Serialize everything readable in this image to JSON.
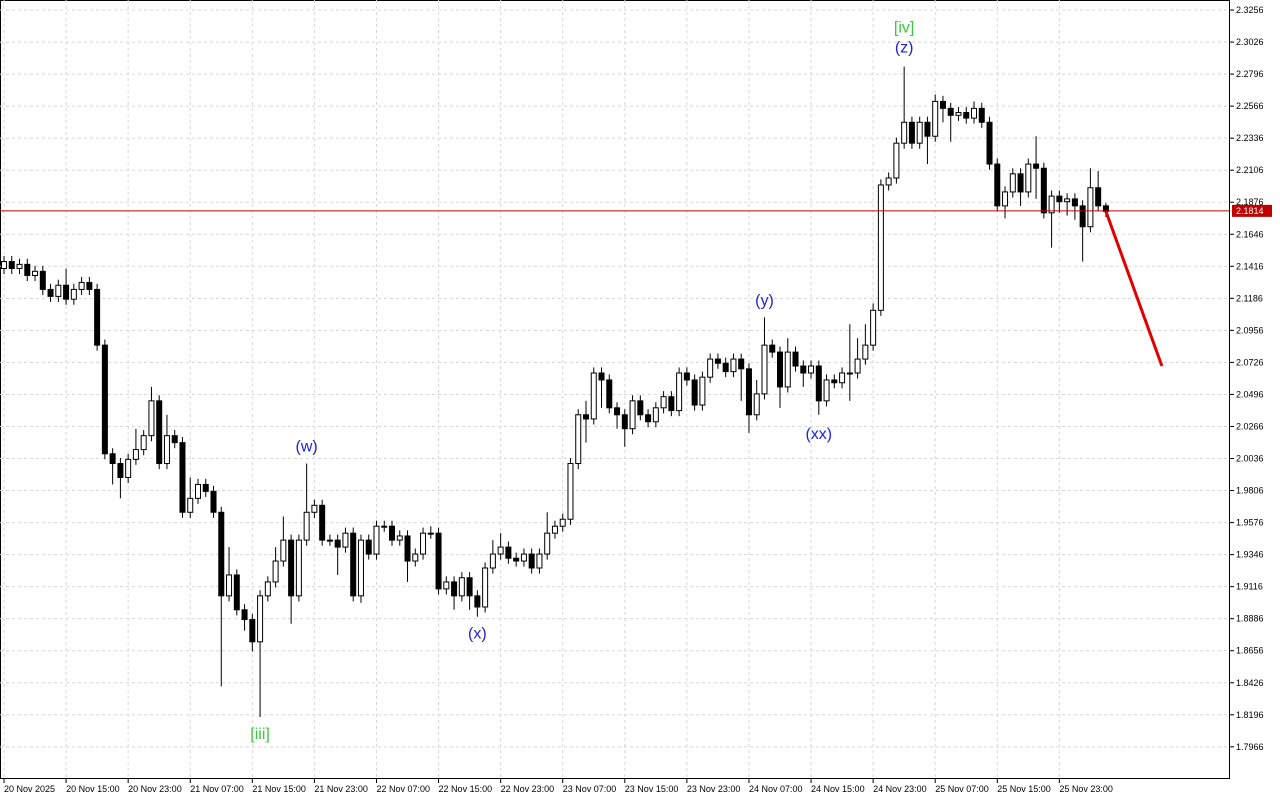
{
  "chart_data": {
    "type": "candlestick",
    "up_color": "#ffffff",
    "down_color": "#000000",
    "grid": true,
    "ylim": [
      1.7735,
      2.3328
    ],
    "yticks": [
      2.3256,
      2.3026,
      2.2796,
      2.2566,
      2.2336,
      2.2106,
      2.1876,
      2.1646,
      2.1416,
      2.1186,
      2.0956,
      2.0726,
      2.0496,
      2.0266,
      2.0036,
      1.9806,
      1.9576,
      1.9346,
      1.9116,
      1.8886,
      1.8656,
      1.8426,
      1.8196,
      1.7966
    ],
    "xticks": [
      {
        "value": 0,
        "label": "20 Nov 2025"
      },
      {
        "value": 8,
        "label": "20 Nov 15:00"
      },
      {
        "value": 16,
        "label": "20 Nov 23:00"
      },
      {
        "value": 24,
        "label": "21 Nov 07:00"
      },
      {
        "value": 32,
        "label": "21 Nov 15:00"
      },
      {
        "value": 40,
        "label": "21 Nov 23:00"
      },
      {
        "value": 48,
        "label": "22 Nov 07:00"
      },
      {
        "value": 56,
        "label": "22 Nov 15:00"
      },
      {
        "value": 64,
        "label": "22 Nov 23:00"
      },
      {
        "value": 72,
        "label": "23 Nov 07:00"
      },
      {
        "value": 80,
        "label": "23 Nov 15:00"
      },
      {
        "value": 88,
        "label": "23 Nov 23:00"
      },
      {
        "value": 96,
        "label": "24 Nov 07:00"
      },
      {
        "value": 104,
        "label": "24 Nov 15:00"
      },
      {
        "value": 112,
        "label": "24 Nov 23:00"
      },
      {
        "value": 120,
        "label": "25 Nov 07:00"
      },
      {
        "value": 128,
        "label": "25 Nov 15:00"
      },
      {
        "value": 136,
        "label": "25 Nov 23:00"
      }
    ],
    "current_price": {
      "value": 2.1814,
      "color": "#c00000"
    },
    "forecast_line": {
      "color": "#e00000",
      "values": [
        2.181,
        2.07
      ]
    },
    "annotations": [
      {
        "text": "[iii]",
        "color": "#3cc83c"
      },
      {
        "text": "(w)",
        "color": "#2020e0"
      },
      {
        "text": "(x)",
        "color": "#2020e0"
      },
      {
        "text": "(y)",
        "color": "#2020e0"
      },
      {
        "text": "(xx)",
        "color": "#2020e0"
      },
      {
        "text": "[iv]",
        "color": "#3cc83c"
      },
      {
        "text": "(z)",
        "color": "#2020e0"
      }
    ],
    "open": [
      2.14,
      2.145,
      2.14,
      2.143,
      2.135,
      2.138,
      2.125,
      2.12,
      2.128,
      2.118,
      2.125,
      2.13,
      2.125,
      2.085,
      2.007,
      2.0,
      1.99,
      2.003,
      2.01,
      2.02,
      2.045,
      2.0,
      2.02,
      2.015,
      1.965,
      1.975,
      1.985,
      1.98,
      1.965,
      1.905,
      1.92,
      1.895,
      1.888,
      1.872,
      1.905,
      1.915,
      1.93,
      1.945,
      1.905,
      1.945,
      1.965,
      1.97,
      1.945,
      1.945,
      1.94,
      1.95,
      1.905,
      1.945,
      1.935,
      1.955,
      1.955,
      1.945,
      1.948,
      1.93,
      1.935,
      1.95,
      1.95,
      1.91,
      1.915,
      1.905,
      1.918,
      1.905,
      1.897,
      1.925,
      1.935,
      1.94,
      1.932,
      1.93,
      1.935,
      1.925,
      1.935,
      1.95,
      1.955,
      1.96,
      2.0,
      2.035,
      2.032,
      2.065,
      2.06,
      2.04,
      2.035,
      2.025,
      2.045,
      2.035,
      2.03,
      2.04,
      2.048,
      2.038,
      2.065,
      2.06,
      2.042,
      2.062,
      2.075,
      2.072,
      2.066,
      2.075,
      2.068,
      2.035,
      2.05,
      2.085,
      2.08,
      2.055,
      2.08,
      2.07,
      2.065,
      2.07,
      2.045,
      2.06,
      2.058,
      2.065,
      2.065,
      2.075,
      2.085,
      2.11,
      2.2,
      2.205,
      2.23,
      2.245,
      2.23,
      2.245,
      2.235,
      2.26,
      2.255,
      2.25,
      2.252,
      2.248,
      2.255,
      2.245,
      2.215,
      2.185,
      2.195,
      2.208,
      2.195,
      2.215,
      2.212,
      2.18,
      2.192,
      2.188,
      2.19,
      2.185,
      2.17,
      2.198,
      2.185
    ],
    "high": [
      2.149,
      2.149,
      2.147,
      2.147,
      2.142,
      2.142,
      2.129,
      2.132,
      2.14,
      2.129,
      2.134,
      2.134,
      2.129,
      2.089,
      2.011,
      2.004,
      2.007,
      2.025,
      2.024,
      2.055,
      2.049,
      2.035,
      2.024,
      2.019,
      1.99,
      1.989,
      1.989,
      1.984,
      1.969,
      1.94,
      1.924,
      1.899,
      1.892,
      1.909,
      1.919,
      1.94,
      1.962,
      1.949,
      1.949,
      2.0,
      1.974,
      1.974,
      1.949,
      1.949,
      1.954,
      1.954,
      1.949,
      1.949,
      1.959,
      1.959,
      1.959,
      1.952,
      1.952,
      1.939,
      1.954,
      1.955,
      1.954,
      1.919,
      1.919,
      1.922,
      1.922,
      1.909,
      1.929,
      1.945,
      1.95,
      1.944,
      1.936,
      1.939,
      1.939,
      1.939,
      1.965,
      1.959,
      1.964,
      2.004,
      2.039,
      2.045,
      2.069,
      2.069,
      2.064,
      2.044,
      2.039,
      2.049,
      2.049,
      2.039,
      2.044,
      2.052,
      2.052,
      2.069,
      2.069,
      2.064,
      2.066,
      2.079,
      2.079,
      2.076,
      2.079,
      2.079,
      2.072,
      2.06,
      2.105,
      2.089,
      2.084,
      2.09,
      2.084,
      2.074,
      2.074,
      2.074,
      2.064,
      2.064,
      2.069,
      2.1,
      2.09,
      2.1,
      2.115,
      2.204,
      2.209,
      2.234,
      2.285,
      2.249,
      2.249,
      2.249,
      2.265,
      2.264,
      2.259,
      2.256,
      2.256,
      2.26,
      2.259,
      2.249,
      2.219,
      2.199,
      2.212,
      2.212,
      2.219,
      2.235,
      2.216,
      2.196,
      2.196,
      2.194,
      2.194,
      2.189,
      2.212,
      2.21,
      2.187
    ],
    "low": [
      2.136,
      2.136,
      2.136,
      2.131,
      2.131,
      2.121,
      2.116,
      2.116,
      2.114,
      2.114,
      2.121,
      2.121,
      2.081,
      2.003,
      1.985,
      1.975,
      1.986,
      1.999,
      2.006,
      2.016,
      1.996,
      1.996,
      2.011,
      1.961,
      1.961,
      1.971,
      1.976,
      1.961,
      1.84,
      1.901,
      1.891,
      1.88,
      1.865,
      1.818,
      1.901,
      1.911,
      1.926,
      1.885,
      1.901,
      1.941,
      1.961,
      1.941,
      1.941,
      1.92,
      1.936,
      1.901,
      1.9,
      1.931,
      1.931,
      1.951,
      1.941,
      1.941,
      1.915,
      1.926,
      1.931,
      1.946,
      1.906,
      1.906,
      1.895,
      1.901,
      1.895,
      1.89,
      1.893,
      1.921,
      1.931,
      1.928,
      1.926,
      1.926,
      1.921,
      1.921,
      1.931,
      1.946,
      1.951,
      1.956,
      1.996,
      2.015,
      2.028,
      2.04,
      2.036,
      2.025,
      2.012,
      2.021,
      2.031,
      2.026,
      2.026,
      2.036,
      2.034,
      2.034,
      2.056,
      2.038,
      2.038,
      2.058,
      2.068,
      2.062,
      2.062,
      2.045,
      2.022,
      2.031,
      2.046,
      2.076,
      2.04,
      2.051,
      2.066,
      2.055,
      2.061,
      2.035,
      2.041,
      2.054,
      2.054,
      2.045,
      2.061,
      2.071,
      2.081,
      2.106,
      2.196,
      2.201,
      2.226,
      2.226,
      2.226,
      2.215,
      2.231,
      2.245,
      2.231,
      2.246,
      2.244,
      2.244,
      2.241,
      2.211,
      2.181,
      2.176,
      2.191,
      2.185,
      2.191,
      2.19,
      2.176,
      2.155,
      2.18,
      2.178,
      2.175,
      2.145,
      2.166,
      2.181,
      2.177
    ],
    "close": [
      2.145,
      2.14,
      2.143,
      2.135,
      2.138,
      2.125,
      2.12,
      2.128,
      2.118,
      2.125,
      2.13,
      2.125,
      2.085,
      2.007,
      2.0,
      1.99,
      2.003,
      2.01,
      2.02,
      2.045,
      2.0,
      2.02,
      2.015,
      1.965,
      1.975,
      1.985,
      1.98,
      1.965,
      1.905,
      1.92,
      1.895,
      1.888,
      1.872,
      1.905,
      1.915,
      1.93,
      1.945,
      1.905,
      1.945,
      1.965,
      1.97,
      1.945,
      1.945,
      1.94,
      1.95,
      1.905,
      1.945,
      1.935,
      1.955,
      1.955,
      1.945,
      1.948,
      1.93,
      1.935,
      1.95,
      1.95,
      1.91,
      1.915,
      1.905,
      1.918,
      1.905,
      1.897,
      1.925,
      1.935,
      1.94,
      1.932,
      1.93,
      1.935,
      1.925,
      1.935,
      1.95,
      1.955,
      1.96,
      2.0,
      2.035,
      2.032,
      2.065,
      2.06,
      2.04,
      2.035,
      2.025,
      2.045,
      2.035,
      2.03,
      2.04,
      2.048,
      2.038,
      2.065,
      2.06,
      2.042,
      2.062,
      2.075,
      2.072,
      2.066,
      2.075,
      2.068,
      2.035,
      2.05,
      2.085,
      2.08,
      2.055,
      2.08,
      2.07,
      2.065,
      2.07,
      2.045,
      2.06,
      2.058,
      2.065,
      2.065,
      2.075,
      2.085,
      2.11,
      2.2,
      2.205,
      2.23,
      2.245,
      2.23,
      2.245,
      2.235,
      2.26,
      2.255,
      2.25,
      2.252,
      2.248,
      2.255,
      2.245,
      2.215,
      2.185,
      2.195,
      2.208,
      2.195,
      2.215,
      2.212,
      2.18,
      2.192,
      2.188,
      2.19,
      2.185,
      2.17,
      2.198,
      2.185,
      2.181
    ]
  }
}
